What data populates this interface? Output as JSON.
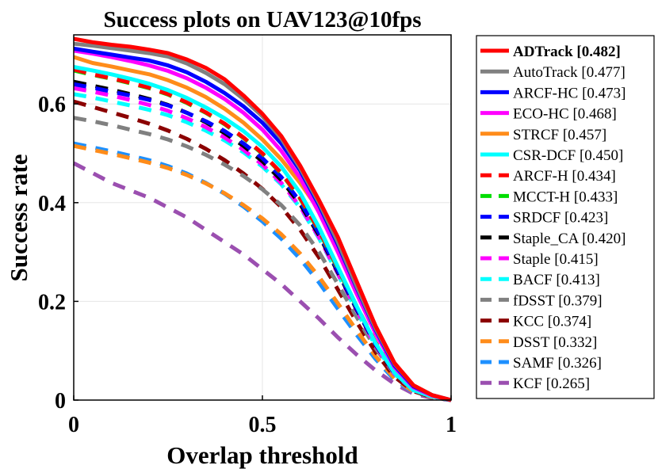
{
  "chart_data": {
    "type": "line",
    "title": "Success plots on UAV123@10fps",
    "xlabel": "Overlap threshold",
    "ylabel": "Success rate",
    "xlim": [
      0,
      1
    ],
    "ylim": [
      0,
      0.74
    ],
    "xticks": [
      "0",
      "0.5",
      "1"
    ],
    "yticks": [
      "0",
      "0.2",
      "0.4",
      "0.6"
    ],
    "grid": true,
    "legend_position": "right-outside",
    "x": [
      0,
      0.05,
      0.1,
      0.15,
      0.2,
      0.25,
      0.3,
      0.35,
      0.4,
      0.45,
      0.5,
      0.55,
      0.6,
      0.65,
      0.7,
      0.75,
      0.8,
      0.85,
      0.9,
      0.95,
      1
    ],
    "series": [
      {
        "name": "ADTrack [0.482]",
        "bold": true,
        "color": "#ff0000",
        "dash": false,
        "values": [
          0.732,
          0.725,
          0.72,
          0.716,
          0.71,
          0.703,
          0.69,
          0.673,
          0.65,
          0.617,
          0.58,
          0.535,
          0.475,
          0.405,
          0.33,
          0.24,
          0.15,
          0.075,
          0.03,
          0.01,
          0.0
        ]
      },
      {
        "name": "AutoTrack [0.477]",
        "color": "#808080",
        "dash": false,
        "values": [
          0.722,
          0.718,
          0.713,
          0.708,
          0.703,
          0.696,
          0.682,
          0.663,
          0.64,
          0.61,
          0.575,
          0.53,
          0.47,
          0.4,
          0.32,
          0.23,
          0.145,
          0.073,
          0.03,
          0.01,
          0.0
        ]
      },
      {
        "name": "ARCF-HC [0.473]",
        "color": "#0000ff",
        "dash": false,
        "values": [
          0.712,
          0.706,
          0.7,
          0.694,
          0.688,
          0.678,
          0.664,
          0.645,
          0.622,
          0.595,
          0.562,
          0.52,
          0.465,
          0.395,
          0.315,
          0.227,
          0.142,
          0.07,
          0.028,
          0.01,
          0.0
        ]
      },
      {
        "name": "ECO-HC [0.468]",
        "color": "#ff00ff",
        "dash": false,
        "values": [
          0.708,
          0.702,
          0.695,
          0.687,
          0.678,
          0.667,
          0.652,
          0.633,
          0.61,
          0.582,
          0.548,
          0.505,
          0.45,
          0.38,
          0.3,
          0.215,
          0.135,
          0.067,
          0.026,
          0.009,
          0.0
        ]
      },
      {
        "name": "STRCF [0.457]",
        "color": "#ff8c1a",
        "dash": false,
        "values": [
          0.695,
          0.683,
          0.676,
          0.668,
          0.66,
          0.648,
          0.633,
          0.614,
          0.59,
          0.562,
          0.528,
          0.488,
          0.44,
          0.385,
          0.31,
          0.232,
          0.15,
          0.075,
          0.03,
          0.01,
          0.0
        ]
      },
      {
        "name": "CSR-DCF [0.450]",
        "color": "#00ffff",
        "dash": false,
        "values": [
          0.675,
          0.668,
          0.66,
          0.651,
          0.641,
          0.628,
          0.612,
          0.593,
          0.571,
          0.545,
          0.513,
          0.473,
          0.42,
          0.35,
          0.27,
          0.19,
          0.115,
          0.055,
          0.02,
          0.007,
          0.0
        ]
      },
      {
        "name": "ARCF-H [0.434]",
        "color": "#ff0000",
        "dash": true,
        "values": [
          0.67,
          0.66,
          0.652,
          0.643,
          0.633,
          0.62,
          0.603,
          0.583,
          0.56,
          0.532,
          0.5,
          0.46,
          0.41,
          0.345,
          0.268,
          0.19,
          0.117,
          0.057,
          0.022,
          0.007,
          0.0
        ]
      },
      {
        "name": "MCCT-H [0.433]",
        "color": "#00dd00",
        "dash": true,
        "values": [
          0.668,
          0.659,
          0.651,
          0.642,
          0.632,
          0.619,
          0.602,
          0.582,
          0.559,
          0.531,
          0.499,
          0.459,
          0.408,
          0.343,
          0.266,
          0.189,
          0.116,
          0.056,
          0.022,
          0.007,
          0.0
        ]
      },
      {
        "name": "SRDCF [0.423]",
        "color": "#0000ff",
        "dash": true,
        "values": [
          0.64,
          0.633,
          0.625,
          0.617,
          0.608,
          0.597,
          0.582,
          0.565,
          0.545,
          0.52,
          0.49,
          0.452,
          0.402,
          0.338,
          0.262,
          0.185,
          0.113,
          0.055,
          0.021,
          0.007,
          0.0
        ]
      },
      {
        "name": "Staple_CA [0.420]",
        "color": "#000000",
        "dash": true,
        "values": [
          0.645,
          0.637,
          0.629,
          0.62,
          0.61,
          0.598,
          0.582,
          0.563,
          0.541,
          0.515,
          0.484,
          0.446,
          0.397,
          0.334,
          0.259,
          0.183,
          0.112,
          0.054,
          0.021,
          0.007,
          0.0
        ]
      },
      {
        "name": "Staple [0.415]",
        "color": "#ff00ff",
        "dash": true,
        "values": [
          0.632,
          0.625,
          0.617,
          0.608,
          0.598,
          0.586,
          0.571,
          0.553,
          0.532,
          0.507,
          0.477,
          0.44,
          0.392,
          0.33,
          0.256,
          0.181,
          0.11,
          0.053,
          0.02,
          0.007,
          0.0
        ]
      },
      {
        "name": "BACF [0.413]",
        "color": "#00ffff",
        "dash": true,
        "values": [
          0.62,
          0.613,
          0.605,
          0.597,
          0.588,
          0.577,
          0.563,
          0.546,
          0.526,
          0.502,
          0.473,
          0.437,
          0.39,
          0.328,
          0.255,
          0.18,
          0.11,
          0.053,
          0.02,
          0.007,
          0.0
        ]
      },
      {
        "name": "fDSST [0.379]",
        "color": "#808080",
        "dash": true,
        "values": [
          0.572,
          0.565,
          0.557,
          0.548,
          0.539,
          0.528,
          0.514,
          0.497,
          0.477,
          0.454,
          0.427,
          0.395,
          0.354,
          0.3,
          0.235,
          0.168,
          0.105,
          0.052,
          0.02,
          0.007,
          0.0
        ]
      },
      {
        "name": "KCC [0.374]",
        "color": "#8b0000",
        "dash": true,
        "values": [
          0.605,
          0.594,
          0.583,
          0.572,
          0.56,
          0.546,
          0.529,
          0.509,
          0.486,
          0.459,
          0.428,
          0.391,
          0.345,
          0.289,
          0.224,
          0.158,
          0.097,
          0.047,
          0.018,
          0.006,
          0.0
        ]
      },
      {
        "name": "DSST [0.332]",
        "color": "#ff8c1a",
        "dash": true,
        "values": [
          0.515,
          0.507,
          0.499,
          0.49,
          0.481,
          0.47,
          0.456,
          0.439,
          0.419,
          0.395,
          0.368,
          0.336,
          0.297,
          0.25,
          0.196,
          0.141,
          0.089,
          0.044,
          0.017,
          0.006,
          0.0
        ]
      },
      {
        "name": "SAMF [0.326]",
        "color": "#1e90ff",
        "dash": true,
        "values": [
          0.52,
          0.512,
          0.504,
          0.495,
          0.486,
          0.474,
          0.459,
          0.44,
          0.418,
          0.392,
          0.362,
          0.327,
          0.286,
          0.238,
          0.185,
          0.132,
          0.083,
          0.041,
          0.016,
          0.006,
          0.0
        ]
      },
      {
        "name": "KCF [0.265]",
        "color": "#9b4fb0",
        "dash": true,
        "values": [
          0.48,
          0.46,
          0.44,
          0.425,
          0.41,
          0.39,
          0.37,
          0.345,
          0.32,
          0.295,
          0.265,
          0.235,
          0.2,
          0.165,
          0.127,
          0.092,
          0.06,
          0.033,
          0.013,
          0.004,
          0.0
        ]
      }
    ]
  }
}
